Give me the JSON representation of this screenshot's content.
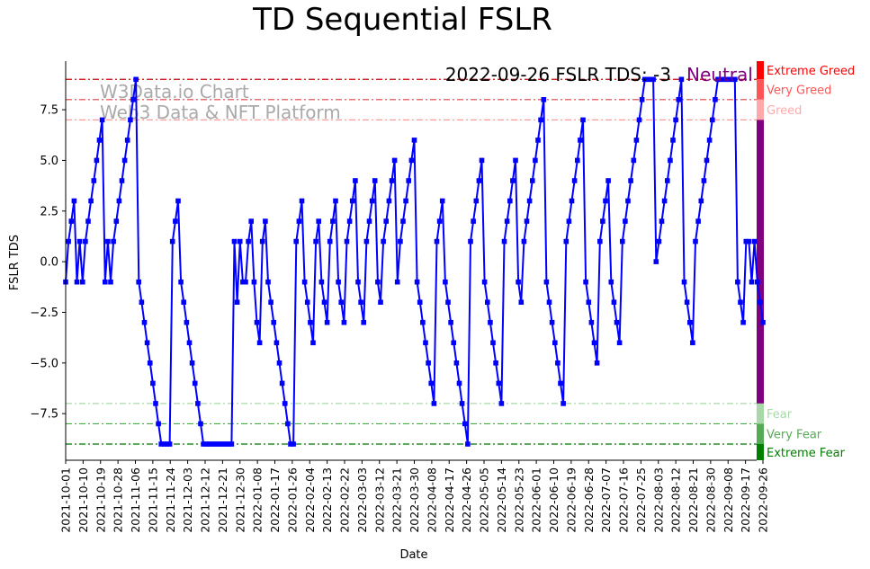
{
  "chart_data": {
    "type": "line",
    "title": "TD Sequential FSLR",
    "xlabel": "Date",
    "ylabel": "FSLR TDS",
    "ylim": [
      -9.8,
      9.9
    ],
    "x_start": "2021-10-01",
    "x_end": "2022-09-26",
    "x_ticks": [
      "2021-10-01",
      "2021-10-10",
      "2021-10-19",
      "2021-10-28",
      "2021-11-06",
      "2021-11-15",
      "2021-11-24",
      "2021-12-03",
      "2021-12-12",
      "2021-12-21",
      "2021-12-30",
      "2022-01-08",
      "2022-01-17",
      "2022-01-26",
      "2022-02-04",
      "2022-02-13",
      "2022-02-22",
      "2022-03-03",
      "2022-03-12",
      "2022-03-21",
      "2022-03-30",
      "2022-04-08",
      "2022-04-17",
      "2022-04-26",
      "2022-05-05",
      "2022-05-14",
      "2022-05-23",
      "2022-06-01",
      "2022-06-10",
      "2022-06-19",
      "2022-06-28",
      "2022-07-07",
      "2022-07-16",
      "2022-07-25",
      "2022-08-03",
      "2022-08-12",
      "2022-08-21",
      "2022-08-30",
      "2022-09-08",
      "2022-09-17",
      "2022-09-26"
    ],
    "y_ticks": [
      -7.5,
      -5.0,
      -2.5,
      0.0,
      2.5,
      5.0,
      7.5
    ],
    "y_tick_labels": [
      "−7.5",
      "−5.0",
      "−2.5",
      "0.0",
      "2.5",
      "5.0",
      "7.5"
    ],
    "annotation": "2022-09-26 FSLR TDS: -3",
    "annotation_status": "Neutral",
    "watermark": [
      "W3Data.io Chart",
      "Web3 Data & NFT Platform"
    ],
    "threshold_lines": [
      {
        "value": 9,
        "color": "#d00000"
      },
      {
        "value": 8,
        "color": "#e04040"
      },
      {
        "value": 7,
        "color": "#ff9999"
      },
      {
        "value": -7,
        "color": "#a8d8a8"
      },
      {
        "value": -8,
        "color": "#44aa44"
      },
      {
        "value": -9,
        "color": "#007700"
      }
    ],
    "zones": [
      {
        "label": "Extreme Greed",
        "from": 9,
        "to": 9.9,
        "color": "#ff0000"
      },
      {
        "label": "Very Greed",
        "from": 8,
        "to": 9,
        "color": "#ff5555"
      },
      {
        "label": "Greed",
        "from": 7,
        "to": 8,
        "color": "#ffaaaa"
      },
      {
        "label": "",
        "from": -7,
        "to": 7,
        "color": "#800080"
      },
      {
        "label": "Fear",
        "from": -8,
        "to": -7,
        "color": "#a8d8a8"
      },
      {
        "label": "Very Fear",
        "from": -9,
        "to": -8,
        "color": "#55aa55"
      },
      {
        "label": "Extreme Fear",
        "from": -9.8,
        "to": -9,
        "color": "#008000"
      }
    ],
    "series": [
      {
        "color": "#0000ff",
        "values": [
          -1,
          1,
          2,
          3,
          -1,
          1,
          -1,
          1,
          2,
          3,
          4,
          5,
          6,
          7,
          -1,
          1,
          -1,
          1,
          2,
          3,
          4,
          5,
          6,
          7,
          8,
          9,
          -1,
          -2,
          -3,
          -4,
          -5,
          -6,
          -7,
          -8,
          -9,
          -9,
          -9,
          -9,
          1,
          2,
          3,
          -1,
          -2,
          -3,
          -4,
          -5,
          -6,
          -7,
          -8,
          -9,
          -9,
          -9,
          -9,
          -9,
          -9,
          -9,
          -9,
          -9,
          -9,
          -9,
          1,
          -2,
          1,
          -1,
          -1,
          1,
          2,
          -1,
          -3,
          -4,
          1,
          2,
          -1,
          -2,
          -3,
          -4,
          -5,
          -6,
          -7,
          -8,
          -9,
          -9,
          1,
          2,
          3,
          -1,
          -2,
          -3,
          -4,
          1,
          2,
          -1,
          -2,
          -3,
          1,
          2,
          3,
          -1,
          -2,
          -3,
          1,
          2,
          3,
          4,
          -1,
          -2,
          -3,
          1,
          2,
          3,
          4,
          -1,
          -2,
          1,
          2,
          3,
          4,
          5,
          -1,
          1,
          2,
          3,
          4,
          5,
          6,
          -1,
          -2,
          -3,
          -4,
          -5,
          -6,
          -7,
          1,
          2,
          3,
          -1,
          -2,
          -3,
          -4,
          -5,
          -6,
          -7,
          -8,
          -9,
          1,
          2,
          3,
          4,
          5,
          -1,
          -2,
          -3,
          -4,
          -5,
          -6,
          -7,
          1,
          2,
          3,
          4,
          5,
          -1,
          -2,
          1,
          2,
          3,
          4,
          5,
          6,
          7,
          8,
          -1,
          -2,
          -3,
          -4,
          -5,
          -6,
          -7,
          1,
          2,
          3,
          4,
          5,
          6,
          7,
          -1,
          -2,
          -3,
          -4,
          -5,
          1,
          2,
          3,
          4,
          -1,
          -2,
          -3,
          -4,
          1,
          2,
          3,
          4,
          5,
          6,
          7,
          8,
          9,
          9,
          9,
          9,
          0,
          1,
          2,
          3,
          4,
          5,
          6,
          7,
          8,
          9,
          -1,
          -2,
          -3,
          -4,
          1,
          2,
          3,
          4,
          5,
          6,
          7,
          8,
          9,
          9,
          9,
          9,
          9,
          9,
          9,
          -1,
          -2,
          -3,
          1,
          1,
          -1,
          1,
          -1,
          -2,
          -3
        ]
      }
    ]
  }
}
